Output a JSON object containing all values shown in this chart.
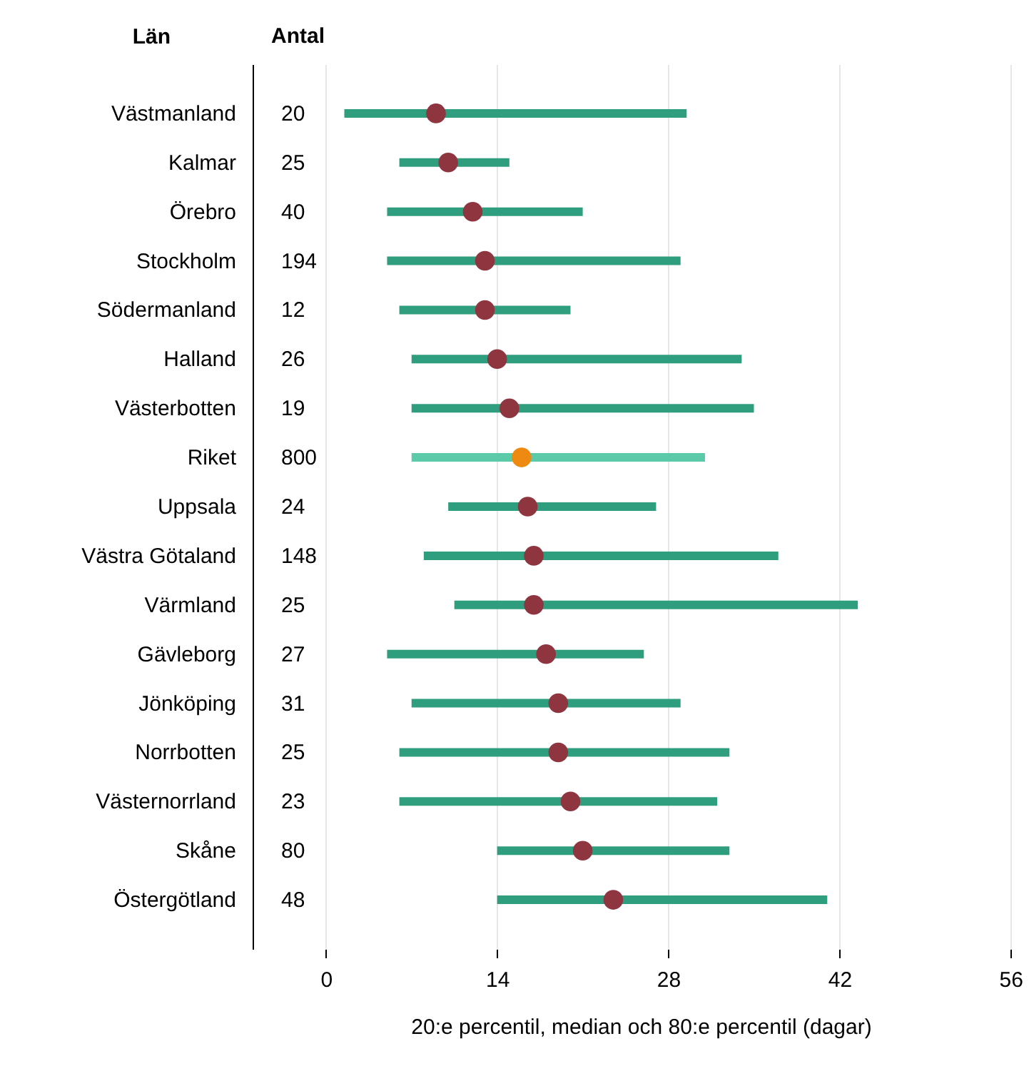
{
  "chart_data": {
    "type": "bar",
    "orientation": "horizontal",
    "xlabel": "20:e percentil, median och 80:e percentil (dagar)",
    "ylabel": "Län",
    "y2label": "Antal",
    "categories": [
      "Västmanland",
      "Kalmar",
      "Örebro",
      "Stockholm",
      "Södermanland",
      "Halland",
      "Västerbotten",
      "Riket",
      "Uppsala",
      "Västra Götaland",
      "Värmland",
      "Gävleborg",
      "Jönköping",
      "Norrbotten",
      "Västernorrland",
      "Skåne",
      "Östergötland"
    ],
    "y2_categories": [
      "20",
      "25",
      "40",
      "194",
      "12",
      "26",
      "19",
      "800",
      "24",
      "148",
      "25",
      "27",
      "31",
      "25",
      "23",
      "80",
      "48"
    ],
    "xlim": [
      -6,
      57.5
    ],
    "xticks": [
      0,
      14,
      28,
      42,
      56
    ],
    "grid": "x",
    "series": [
      {
        "base": [
          1.5,
          6,
          5,
          5,
          6,
          7,
          7,
          7,
          10,
          8,
          10.5,
          5,
          7,
          6,
          6,
          14,
          14
        ],
        "values": [
          28,
          9,
          16,
          24,
          14,
          27,
          28,
          24,
          17,
          29,
          33,
          21,
          22,
          27,
          26,
          19,
          27
        ],
        "colors": [
          "#2e9e7e",
          "#2e9e7e",
          "#2e9e7e",
          "#2e9e7e",
          "#2e9e7e",
          "#2e9e7e",
          "#2e9e7e",
          "#5bcaa9",
          "#2e9e7e",
          "#2e9e7e",
          "#2e9e7e",
          "#2e9e7e",
          "#2e9e7e",
          "#2e9e7e",
          "#2e9e7e",
          "#2e9e7e",
          "#2e9e7e"
        ]
      },
      {
        "type": "scatter",
        "marker": "circle",
        "values": [
          9,
          10,
          12,
          13,
          13,
          14,
          15,
          16,
          16.5,
          17,
          17,
          18,
          19,
          19,
          20,
          21,
          23.5
        ],
        "colors": [
          "#8e3540",
          "#8e3540",
          "#8e3540",
          "#8e3540",
          "#8e3540",
          "#8e3540",
          "#8e3540",
          "#ee8a12",
          "#8e3540",
          "#8e3540",
          "#8e3540",
          "#8e3540",
          "#8e3540",
          "#8e3540",
          "#8e3540",
          "#8e3540",
          "#8e3540"
        ]
      }
    ]
  }
}
